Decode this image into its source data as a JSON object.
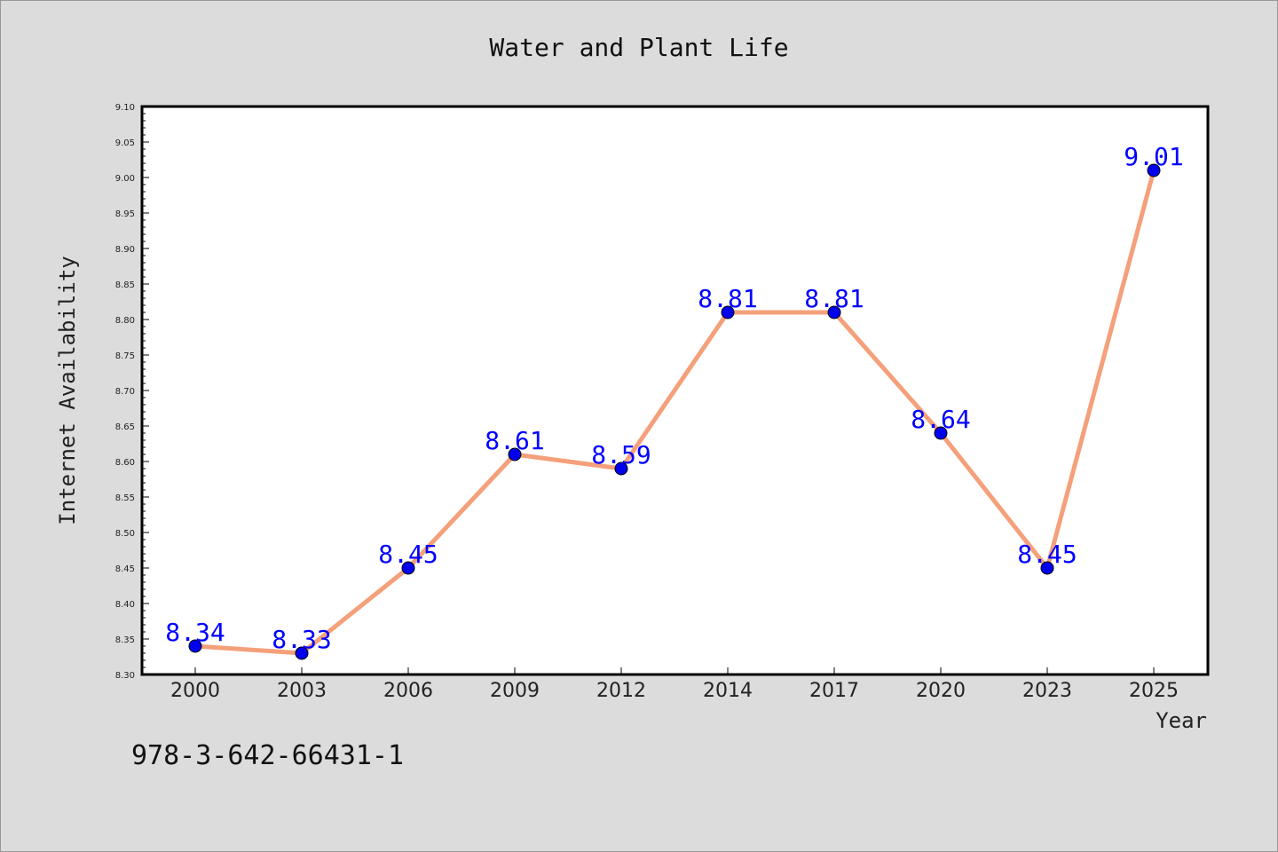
{
  "chart_data": {
    "type": "line",
    "title": "Water and Plant Life",
    "xlabel": "Year",
    "ylabel": "Internet Availability",
    "categories": [
      "2000",
      "2003",
      "2006",
      "2009",
      "2012",
      "2014",
      "2017",
      "2020",
      "2023",
      "2025"
    ],
    "series": [
      {
        "values": [
          8.34,
          8.33,
          8.45,
          8.61,
          8.59,
          8.81,
          8.81,
          8.64,
          8.45,
          9.01
        ],
        "line_color": "#f4a07a",
        "marker_color": "#0000ee",
        "label_color": "#0000ff"
      }
    ],
    "ylim": [
      8.3,
      9.1
    ],
    "yticks": [
      "8.30",
      "8.35",
      "8.40",
      "8.45",
      "8.50",
      "8.55",
      "8.60",
      "8.65",
      "8.70",
      "8.75",
      "8.80",
      "8.85",
      "8.90",
      "8.95",
      "9.00",
      "9.05",
      "9.10"
    ],
    "grid": false,
    "legend": "none",
    "background_color": "#dcdcdc",
    "plot_background_color": "#ffffff"
  },
  "footer": {
    "isbn": "978-3-642-66431-1"
  }
}
